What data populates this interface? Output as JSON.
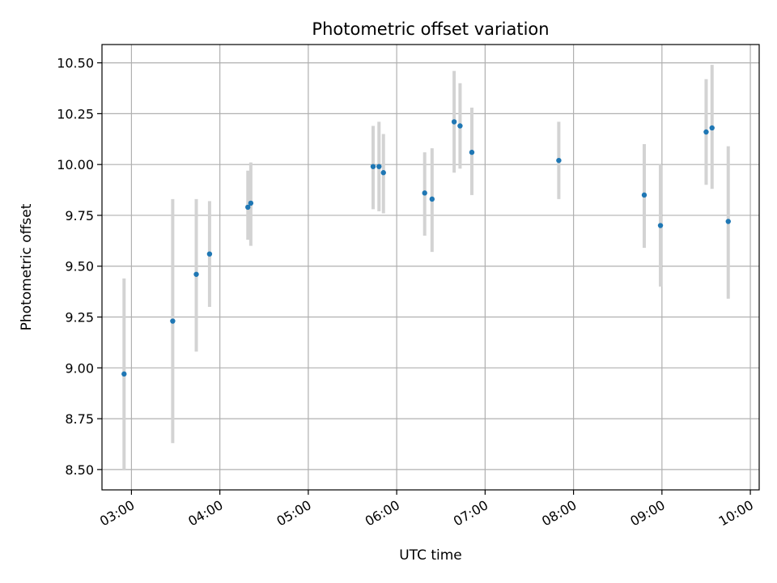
{
  "chart_data": {
    "type": "scatter",
    "title": "Photometric offset variation",
    "xlabel": "UTC time",
    "ylabel": "Photometric offset",
    "x_unit": "time (HH:MM)",
    "xlim": [
      "02:40",
      "10:06"
    ],
    "ylim": [
      8.4,
      10.59
    ],
    "grid": true,
    "xticks": [
      "03:00",
      "04:00",
      "05:00",
      "06:00",
      "07:00",
      "08:00",
      "09:00",
      "10:00"
    ],
    "yticks": [
      "8.50",
      "8.75",
      "9.00",
      "9.25",
      "9.50",
      "9.75",
      "10.00",
      "10.25",
      "10.50"
    ],
    "colors": {
      "marker": "#1f77b4",
      "errorbar": "#d3d3d3",
      "grid": "#b0b0b0"
    },
    "points": [
      {
        "x": "02:55",
        "y": 8.97,
        "ylow": 8.5,
        "yhigh": 9.44
      },
      {
        "x": "03:28",
        "y": 9.23,
        "ylow": 8.63,
        "yhigh": 9.83
      },
      {
        "x": "03:44",
        "y": 9.46,
        "ylow": 9.08,
        "yhigh": 9.83
      },
      {
        "x": "03:53",
        "y": 9.56,
        "ylow": 9.3,
        "yhigh": 9.82
      },
      {
        "x": "04:19",
        "y": 9.79,
        "ylow": 9.63,
        "yhigh": 9.97
      },
      {
        "x": "04:21",
        "y": 9.81,
        "ylow": 9.6,
        "yhigh": 10.01
      },
      {
        "x": "05:44",
        "y": 9.99,
        "ylow": 9.78,
        "yhigh": 10.19
      },
      {
        "x": "05:48",
        "y": 9.99,
        "ylow": 9.77,
        "yhigh": 10.21
      },
      {
        "x": "05:51",
        "y": 9.96,
        "ylow": 9.76,
        "yhigh": 10.15
      },
      {
        "x": "06:19",
        "y": 9.86,
        "ylow": 9.65,
        "yhigh": 10.06
      },
      {
        "x": "06:24",
        "y": 9.83,
        "ylow": 9.57,
        "yhigh": 10.08
      },
      {
        "x": "06:39",
        "y": 10.21,
        "ylow": 9.96,
        "yhigh": 10.46
      },
      {
        "x": "06:43",
        "y": 10.19,
        "ylow": 9.98,
        "yhigh": 10.4
      },
      {
        "x": "06:51",
        "y": 10.06,
        "ylow": 9.85,
        "yhigh": 10.28
      },
      {
        "x": "07:50",
        "y": 10.02,
        "ylow": 9.83,
        "yhigh": 10.21
      },
      {
        "x": "08:48",
        "y": 9.85,
        "ylow": 9.59,
        "yhigh": 10.1
      },
      {
        "x": "08:59",
        "y": 9.7,
        "ylow": 9.4,
        "yhigh": 10.0
      },
      {
        "x": "09:30",
        "y": 10.16,
        "ylow": 9.9,
        "yhigh": 10.42
      },
      {
        "x": "09:34",
        "y": 10.18,
        "ylow": 9.88,
        "yhigh": 10.49
      },
      {
        "x": "09:45",
        "y": 9.72,
        "ylow": 9.34,
        "yhigh": 10.09
      }
    ]
  }
}
